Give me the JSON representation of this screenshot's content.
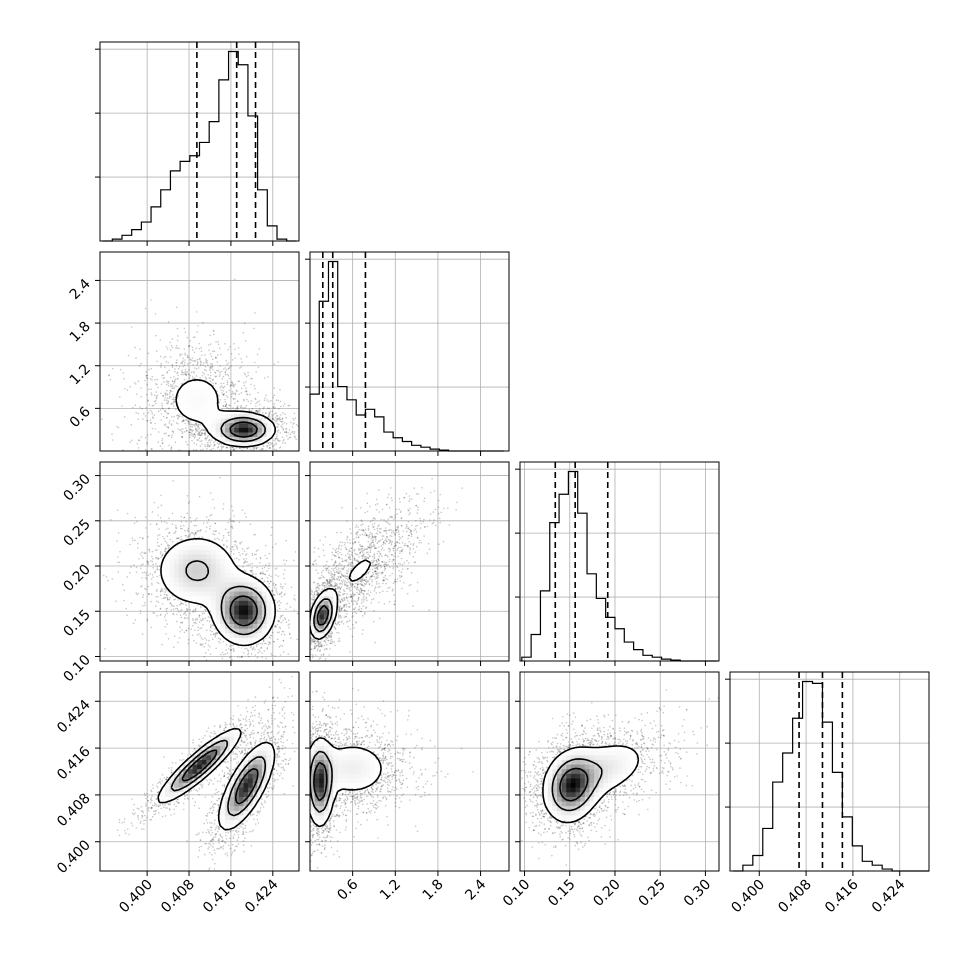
{
  "chart_data": {
    "type": "corner",
    "params": [
      {
        "key": "p0",
        "range": [
          0.391,
          0.429
        ],
        "ticks": [
          "0.400",
          "0.408",
          "0.416",
          "0.424"
        ],
        "tick_values": [
          0.4,
          0.408,
          0.416,
          0.424
        ],
        "quantiles": [
          0.4095,
          0.4171,
          0.4207
        ],
        "hist_bin_edges_start": 0.3915,
        "hist_bin_width": 0.00185,
        "hist": [
          0,
          0.01,
          0.03,
          0.06,
          0.1,
          0.18,
          0.27,
          0.37,
          0.42,
          0.45,
          0.52,
          0.63,
          0.85,
          1.0,
          0.93,
          0.66,
          0.27,
          0.08,
          0.01,
          0
        ]
      },
      {
        "key": "p1",
        "range": [
          0.0,
          2.8
        ],
        "ticks": [
          "0.6",
          "1.2",
          "1.8",
          "2.4"
        ],
        "tick_values": [
          0.6,
          1.2,
          1.8,
          2.4
        ],
        "quantiles": [
          0.18,
          0.32,
          0.78
        ],
        "hist_bin_edges_start": 0.0,
        "hist_bin_width": 0.13,
        "hist": [
          0.3,
          0.79,
          1.0,
          0.34,
          0.27,
          0.19,
          0.22,
          0.18,
          0.1,
          0.07,
          0.05,
          0.03,
          0.02,
          0.01,
          0.005,
          0,
          0,
          0,
          0,
          0,
          0
        ]
      },
      {
        "key": "p2",
        "range": [
          0.095,
          0.315
        ],
        "ticks": [
          "0.10",
          "0.15",
          "0.20",
          "0.25",
          "0.30"
        ],
        "tick_values": [
          0.1,
          0.15,
          0.2,
          0.25,
          0.3
        ],
        "quantiles": [
          0.134,
          0.156,
          0.192
        ],
        "hist_bin_edges_start": 0.097,
        "hist_bin_width": 0.0103,
        "hist": [
          0.02,
          0.14,
          0.37,
          0.73,
          0.88,
          1.0,
          0.78,
          0.46,
          0.33,
          0.23,
          0.17,
          0.1,
          0.06,
          0.03,
          0.02,
          0.01,
          0.005,
          0,
          0,
          0,
          0
        ]
      },
      {
        "key": "p3",
        "range": [
          0.395,
          0.429
        ],
        "ticks": [
          "0.400",
          "0.408",
          "0.416",
          "0.424"
        ],
        "tick_values": [
          0.4,
          0.408,
          0.416,
          0.424
        ],
        "quantiles": [
          0.4068,
          0.4108,
          0.4142
        ],
        "hist_bin_edges_start": 0.3955,
        "hist_bin_width": 0.0017,
        "hist": [
          0,
          0.03,
          0.08,
          0.22,
          0.46,
          0.61,
          0.79,
          0.98,
          0.97,
          0.77,
          0.51,
          0.28,
          0.13,
          0.05,
          0.03,
          0.01,
          0,
          0,
          0,
          0
        ]
      }
    ],
    "histogram_y_ticks_per_panel": 3,
    "pairs": [
      {
        "x": 0,
        "y": 1,
        "modes": [
          {
            "mx": 0.4095,
            "my": 0.72,
            "sx": 0.0045,
            "sy": 0.32,
            "rho": 0.0,
            "w": 0.45
          },
          {
            "mx": 0.4185,
            "my": 0.3,
            "sx": 0.003,
            "sy": 0.12,
            "rho": 0.0,
            "w": 0.55
          }
        ]
      },
      {
        "x": 0,
        "y": 2,
        "modes": [
          {
            "mx": 0.4095,
            "my": 0.195,
            "sx": 0.0045,
            "sy": 0.023,
            "rho": 0.0,
            "w": 0.45
          },
          {
            "mx": 0.4185,
            "my": 0.15,
            "sx": 0.003,
            "sy": 0.019,
            "rho": 0.0,
            "w": 0.55
          }
        ]
      },
      {
        "x": 0,
        "y": 3,
        "modes": [
          {
            "mx": 0.41,
            "my": 0.413,
            "sx": 0.004,
            "sy": 0.0032,
            "rho": 0.9,
            "w": 0.45
          },
          {
            "mx": 0.419,
            "my": 0.4095,
            "sx": 0.0027,
            "sy": 0.0038,
            "rho": 0.72,
            "w": 0.55
          }
        ]
      },
      {
        "x": 1,
        "y": 2,
        "modes": [
          {
            "mx": 0.18,
            "my": 0.145,
            "sx": 0.09,
            "sy": 0.013,
            "rho": 0.35,
            "w": 0.5
          },
          {
            "mx": 0.7,
            "my": 0.195,
            "sx": 0.35,
            "sy": 0.028,
            "rho": 0.7,
            "w": 0.5
          }
        ]
      },
      {
        "x": 1,
        "y": 3,
        "modes": [
          {
            "mx": 0.14,
            "my": 0.41,
            "sx": 0.1,
            "sy": 0.0038,
            "rho": 0.0,
            "w": 0.55
          },
          {
            "mx": 0.6,
            "my": 0.4125,
            "sx": 0.33,
            "sy": 0.003,
            "rho": 0.0,
            "w": 0.45
          }
        ]
      },
      {
        "x": 2,
        "y": 3,
        "modes": [
          {
            "mx": 0.152,
            "my": 0.4095,
            "sx": 0.016,
            "sy": 0.0032,
            "rho": 0.15,
            "w": 0.65
          },
          {
            "mx": 0.19,
            "my": 0.4125,
            "sx": 0.028,
            "sy": 0.003,
            "rho": 0.4,
            "w": 0.35
          }
        ]
      }
    ],
    "contour_levels": [
      "1-sigma",
      "1.5-sigma",
      "2-sigma"
    ],
    "grid": true,
    "colors": {
      "lines": "#000000",
      "points": "#000000",
      "grid": "#b0b0b0",
      "background": "#ffffff"
    }
  }
}
